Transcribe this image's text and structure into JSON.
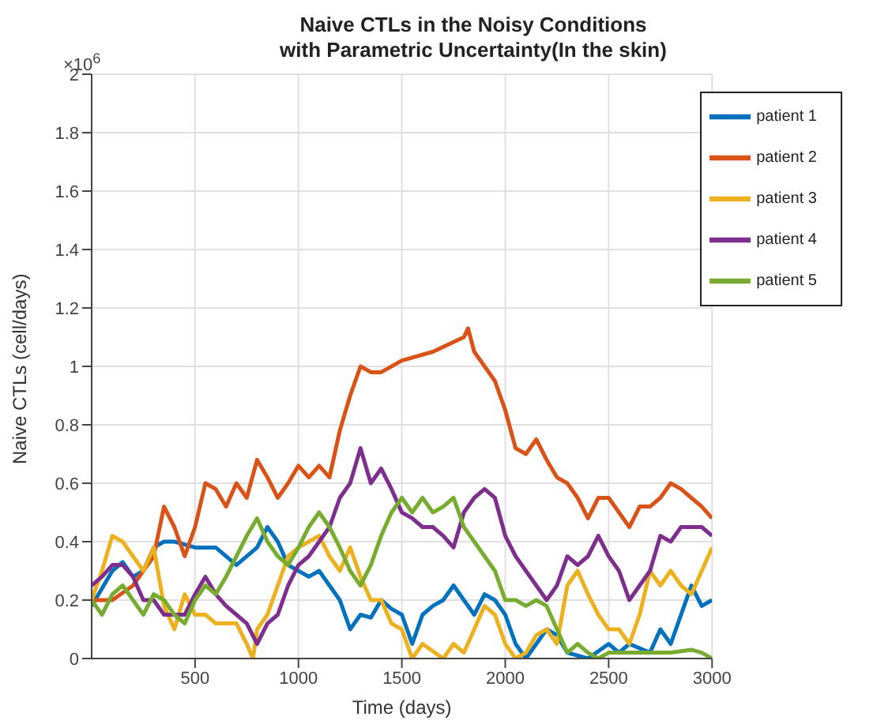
{
  "chart_data": {
    "type": "line",
    "title": "Naive CTLs in the Noisy Conditions\nwith Parametric Uncertainty(In the skin)",
    "xlabel": "Time (days)",
    "ylabel": "Naive CTLs (cell/days)",
    "annotations": [
      "×10$^{6}$"
    ],
    "xlim": [
      0,
      3000
    ],
    "xticks": [
      500,
      1000,
      1500,
      2000,
      2500,
      3000
    ],
    "ylim": [
      0,
      2
    ],
    "yticks": [
      0,
      0.2,
      0.4,
      0.6,
      0.8,
      1,
      1.2,
      1.4,
      1.6,
      1.8,
      2
    ],
    "grid": true,
    "legend": "top right",
    "line_style": "solid",
    "marker": "none",
    "series": [
      {
        "name": "patient 1",
        "color": "#0072bd",
        "x": [
          0,
          100,
          150,
          200,
          250,
          300,
          350,
          400,
          500,
          600,
          700,
          800,
          850,
          900,
          950,
          1000,
          1050,
          1100,
          1150,
          1200,
          1250,
          1300,
          1350,
          1400,
          1450,
          1500,
          1550,
          1600,
          1650,
          1700,
          1750,
          1800,
          1850,
          1900,
          1950,
          2000,
          2050,
          2100,
          2150,
          2200,
          2250,
          2300,
          2400,
          2500,
          2550,
          2600,
          2700,
          2750,
          2800,
          2850,
          2900,
          2950,
          3000
        ],
        "values": [
          0.18,
          0.3,
          0.33,
          0.28,
          0.3,
          0.38,
          0.4,
          0.4,
          0.38,
          0.38,
          0.32,
          0.38,
          0.45,
          0.4,
          0.32,
          0.3,
          0.28,
          0.3,
          0.25,
          0.2,
          0.1,
          0.15,
          0.14,
          0.2,
          0.17,
          0.15,
          0.05,
          0.15,
          0.18,
          0.2,
          0.25,
          0.2,
          0.15,
          0.22,
          0.2,
          0.15,
          0.05,
          0,
          0.05,
          0.1,
          0.08,
          0.02,
          0,
          0.05,
          0.02,
          0.05,
          0.02,
          0.1,
          0.05,
          0.15,
          0.25,
          0.18,
          0.2
        ]
      },
      {
        "name": "patient 2",
        "color": "#d95319",
        "x": [
          0,
          100,
          200,
          300,
          350,
          400,
          450,
          500,
          550,
          600,
          650,
          700,
          750,
          800,
          850,
          900,
          950,
          1000,
          1050,
          1100,
          1150,
          1200,
          1250,
          1300,
          1350,
          1400,
          1500,
          1650,
          1800,
          1820,
          1850,
          1900,
          1950,
          2000,
          2050,
          2100,
          2150,
          2200,
          2250,
          2300,
          2350,
          2400,
          2450,
          2500,
          2550,
          2600,
          2650,
          2700,
          2750,
          2800,
          2850,
          2900,
          2950,
          3000
        ],
        "values": [
          0.2,
          0.2,
          0.25,
          0.35,
          0.52,
          0.45,
          0.35,
          0.45,
          0.6,
          0.58,
          0.52,
          0.6,
          0.55,
          0.68,
          0.62,
          0.55,
          0.6,
          0.66,
          0.62,
          0.66,
          0.62,
          0.78,
          0.9,
          1,
          0.98,
          0.98,
          1.02,
          1.05,
          1.1,
          1.13,
          1.05,
          1,
          0.95,
          0.85,
          0.72,
          0.7,
          0.75,
          0.68,
          0.62,
          0.6,
          0.55,
          0.48,
          0.55,
          0.55,
          0.5,
          0.45,
          0.52,
          0.52,
          0.55,
          0.6,
          0.58,
          0.55,
          0.52,
          0.48
        ]
      },
      {
        "name": "patient 3",
        "color": "#edb120",
        "x": [
          0,
          50,
          100,
          150,
          200,
          250,
          300,
          350,
          400,
          450,
          500,
          550,
          600,
          700,
          750,
          780,
          800,
          850,
          900,
          950,
          1000,
          1050,
          1100,
          1150,
          1200,
          1250,
          1300,
          1350,
          1400,
          1450,
          1500,
          1550,
          1600,
          1700,
          1750,
          1800,
          1850,
          1900,
          1950,
          2000,
          2050,
          2100,
          2150,
          2200,
          2250,
          2300,
          2350,
          2400,
          2450,
          2500,
          2550,
          2600,
          2650,
          2700,
          2750,
          2800,
          2850,
          2900,
          2950,
          3000
        ],
        "values": [
          0.2,
          0.3,
          0.42,
          0.4,
          0.35,
          0.3,
          0.38,
          0.18,
          0.1,
          0.22,
          0.15,
          0.15,
          0.12,
          0.12,
          0.05,
          0,
          0.1,
          0.15,
          0.25,
          0.35,
          0.38,
          0.4,
          0.42,
          0.35,
          0.3,
          0.38,
          0.28,
          0.2,
          0.2,
          0.12,
          0.1,
          0,
          0.05,
          0,
          0.05,
          0.02,
          0.1,
          0.18,
          0.15,
          0.05,
          0,
          0.02,
          0.08,
          0.1,
          0.05,
          0.25,
          0.3,
          0.22,
          0.15,
          0.1,
          0.1,
          0.05,
          0.15,
          0.3,
          0.25,
          0.3,
          0.25,
          0.22,
          0.3,
          0.38
        ]
      },
      {
        "name": "patient 4",
        "color": "#7e2f8e",
        "x": [
          0,
          50,
          100,
          150,
          200,
          250,
          300,
          350,
          400,
          450,
          500,
          550,
          600,
          650,
          700,
          750,
          800,
          850,
          900,
          950,
          1000,
          1050,
          1100,
          1150,
          1200,
          1250,
          1300,
          1350,
          1400,
          1450,
          1500,
          1550,
          1600,
          1650,
          1700,
          1750,
          1800,
          1850,
          1900,
          1950,
          2000,
          2050,
          2100,
          2150,
          2200,
          2250,
          2300,
          2350,
          2400,
          2450,
          2500,
          2550,
          2600,
          2650,
          2700,
          2750,
          2800,
          2850,
          2900,
          2950,
          3000
        ],
        "values": [
          0.25,
          0.28,
          0.32,
          0.32,
          0.28,
          0.2,
          0.2,
          0.15,
          0.15,
          0.15,
          0.22,
          0.28,
          0.22,
          0.18,
          0.15,
          0.12,
          0.05,
          0.12,
          0.15,
          0.25,
          0.32,
          0.35,
          0.4,
          0.45,
          0.55,
          0.6,
          0.72,
          0.6,
          0.65,
          0.58,
          0.5,
          0.48,
          0.45,
          0.45,
          0.42,
          0.38,
          0.5,
          0.55,
          0.58,
          0.55,
          0.42,
          0.35,
          0.3,
          0.25,
          0.2,
          0.25,
          0.35,
          0.32,
          0.35,
          0.42,
          0.35,
          0.3,
          0.2,
          0.25,
          0.3,
          0.42,
          0.4,
          0.45,
          0.45,
          0.45,
          0.42
        ]
      },
      {
        "name": "patient 5",
        "color": "#77ac30",
        "x": [
          0,
          50,
          100,
          150,
          200,
          250,
          300,
          350,
          400,
          450,
          500,
          550,
          600,
          650,
          700,
          750,
          800,
          850,
          900,
          950,
          1000,
          1050,
          1100,
          1150,
          1200,
          1250,
          1300,
          1350,
          1400,
          1450,
          1500,
          1550,
          1600,
          1650,
          1700,
          1750,
          1800,
          1850,
          1900,
          1950,
          2000,
          2050,
          2100,
          2150,
          2200,
          2250,
          2300,
          2350,
          2400,
          2450,
          2500,
          2600,
          2700,
          2800,
          2900,
          2950,
          3000
        ],
        "values": [
          0.2,
          0.15,
          0.22,
          0.25,
          0.2,
          0.15,
          0.22,
          0.2,
          0.15,
          0.12,
          0.2,
          0.25,
          0.22,
          0.28,
          0.35,
          0.42,
          0.48,
          0.4,
          0.35,
          0.32,
          0.38,
          0.45,
          0.5,
          0.45,
          0.38,
          0.3,
          0.25,
          0.32,
          0.42,
          0.5,
          0.55,
          0.5,
          0.55,
          0.5,
          0.52,
          0.55,
          0.45,
          0.4,
          0.35,
          0.3,
          0.2,
          0.2,
          0.18,
          0.2,
          0.18,
          0.1,
          0.02,
          0.05,
          0.02,
          0,
          0.02,
          0.02,
          0.02,
          0.02,
          0.03,
          0.02,
          0
        ]
      }
    ]
  }
}
